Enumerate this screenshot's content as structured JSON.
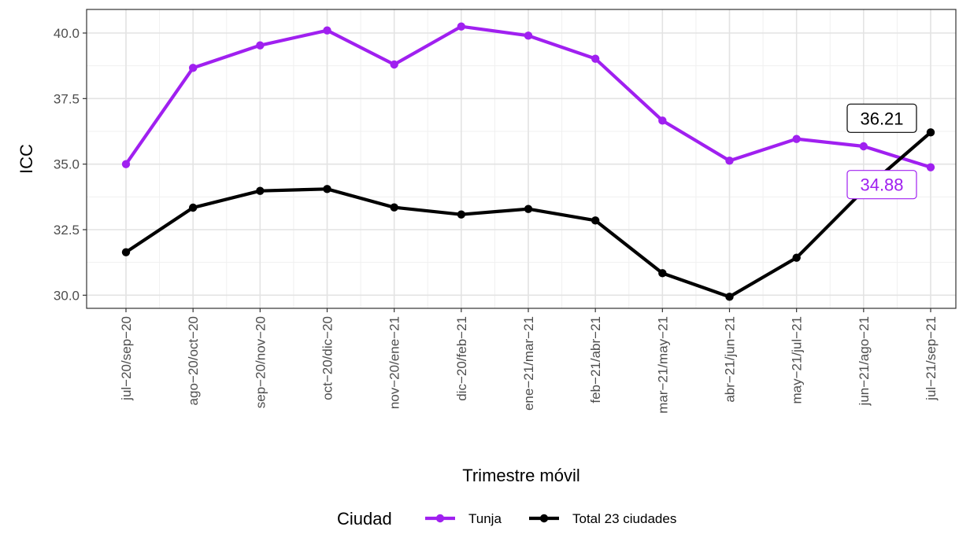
{
  "chart_data": {
    "type": "line",
    "title": "",
    "xlabel": "Trimestre móvil",
    "ylabel": "ICC",
    "categories": [
      "jul−20/sep−20",
      "ago−20/oct−20",
      "sep−20/nov−20",
      "oct−20/dic−20",
      "nov−20/ene−21",
      "dic−20/feb−21",
      "ene−21/mar−21",
      "feb−21/abr−21",
      "mar−21/may−21",
      "abr−21/jun−21",
      "may−21/jul−21",
      "jun−21/ago−21",
      "jul−21/sep−21"
    ],
    "ylim": [
      29.5,
      40.9
    ],
    "yticks": [
      30.0,
      32.5,
      35.0,
      37.5,
      40.0
    ],
    "ytick_labels": [
      "30.0",
      "32.5",
      "35.0",
      "37.5",
      "40.0"
    ],
    "grid": true,
    "legend": {
      "title": "Ciudad",
      "position": "bottom"
    },
    "series": [
      {
        "name": "Tunja",
        "color": "#a020f0",
        "values": [
          35.0,
          38.67,
          39.53,
          40.1,
          38.8,
          40.25,
          39.9,
          39.02,
          36.66,
          35.13,
          35.96,
          35.68,
          34.88
        ],
        "end_label": "34.88"
      },
      {
        "name": "Total 23 ciudades",
        "color": "#000000",
        "values": [
          31.64,
          33.34,
          33.98,
          34.05,
          33.35,
          33.08,
          33.29,
          32.85,
          30.84,
          29.94,
          31.43,
          34.0,
          36.21
        ],
        "end_label": "36.21"
      }
    ]
  }
}
